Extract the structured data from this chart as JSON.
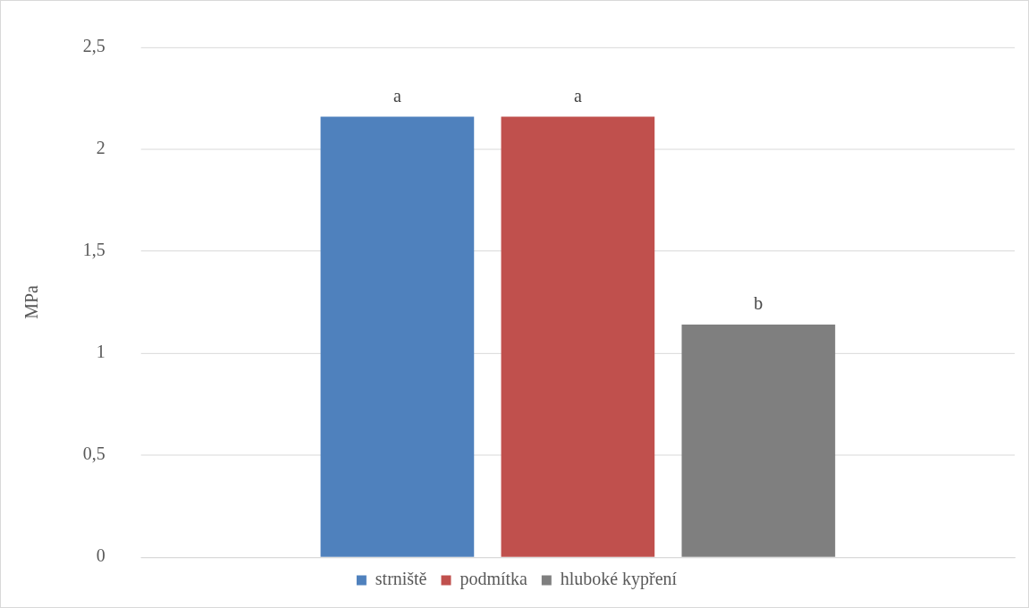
{
  "chart_data": {
    "type": "bar",
    "ylabel": "MPa",
    "categories": [
      null
    ],
    "series": [
      {
        "name": "strniště",
        "color": "#4f81bd",
        "values": [
          2.16
        ],
        "value_labels": [
          "a"
        ]
      },
      {
        "name": "podmítka",
        "color": "#c0504d",
        "values": [
          2.16
        ],
        "value_labels": [
          "a"
        ]
      },
      {
        "name": "hluboké kypření",
        "color": "#7f7f7f",
        "values": [
          1.14
        ],
        "value_labels": [
          "b"
        ]
      }
    ],
    "ylim": [
      0,
      2.5
    ],
    "yticks": [
      0,
      {
        "value": 0.5,
        "label": "0,5"
      },
      1,
      {
        "value": 1.5,
        "label": "1,5"
      },
      2,
      {
        "value": 2.5,
        "label": "2,5"
      }
    ],
    "grid": "y",
    "legend": "bottom"
  }
}
